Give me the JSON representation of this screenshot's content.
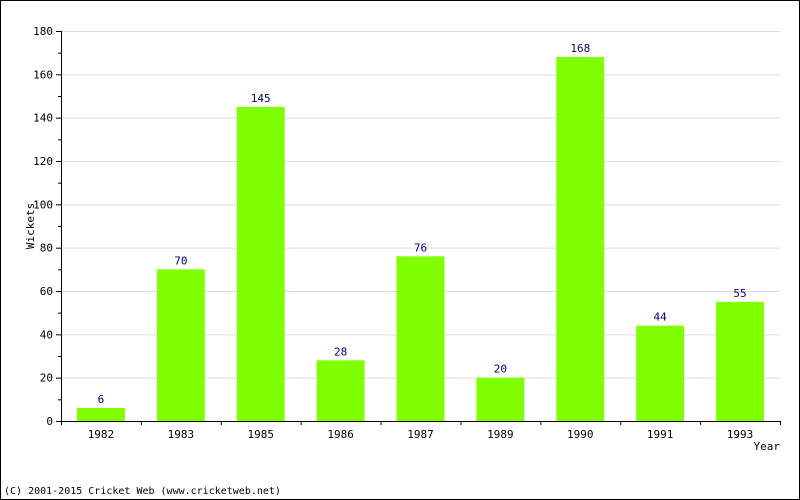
{
  "chart_data": {
    "type": "bar",
    "categories": [
      "1982",
      "1983",
      "1985",
      "1986",
      "1987",
      "1989",
      "1990",
      "1991",
      "1993"
    ],
    "values": [
      6,
      70,
      145,
      28,
      76,
      20,
      168,
      44,
      55
    ],
    "xlabel": "Year",
    "ylabel": "Wickets",
    "ylim": [
      0,
      180
    ],
    "yticks": [
      0,
      20,
      40,
      60,
      80,
      100,
      120,
      140,
      160,
      180
    ],
    "grid": true,
    "bar_color": "#7fff00",
    "label_color": "#000080",
    "grid_color": "#dddddd"
  },
  "footer": {
    "copyright": "(C) 2001-2015 Cricket Web (www.cricketweb.net)"
  }
}
